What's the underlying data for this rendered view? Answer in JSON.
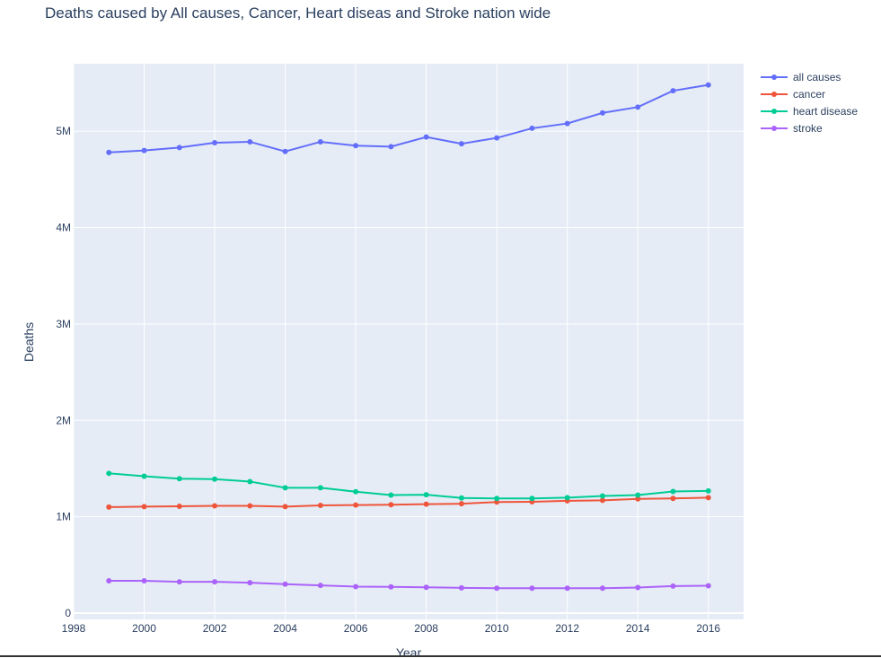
{
  "chart_data": {
    "type": "line",
    "title": "Deaths caused by All causes, Cancer, Heart diseas and Stroke nation wide",
    "xlabel": "Year",
    "ylabel": "Deaths",
    "xlim": [
      1998,
      2017
    ],
    "ylim": [
      0,
      5700000
    ],
    "x_ticks": [
      1998,
      2000,
      2002,
      2004,
      2006,
      2008,
      2010,
      2012,
      2014,
      2016
    ],
    "y_ticks": [
      0,
      1000000,
      2000000,
      3000000,
      4000000,
      5000000
    ],
    "y_tick_labels": [
      "0",
      "1M",
      "2M",
      "3M",
      "4M",
      "5M"
    ],
    "grid": true,
    "legend_position": "top-right",
    "plot_bgcolor": "#E5ECF6",
    "x": [
      1999,
      2000,
      2001,
      2002,
      2003,
      2004,
      2005,
      2006,
      2007,
      2008,
      2009,
      2010,
      2011,
      2012,
      2013,
      2014,
      2015,
      2016
    ],
    "series": [
      {
        "name": "all causes",
        "color": "#636EFA",
        "values": [
          4780000,
          4800000,
          4830000,
          4880000,
          4890000,
          4790000,
          4890000,
          4850000,
          4840000,
          4940000,
          4870000,
          4930000,
          5030000,
          5080000,
          5190000,
          5250000,
          5420000,
          5480000
        ]
      },
      {
        "name": "cancer",
        "color": "#EF553B",
        "values": [
          1100000,
          1105000,
          1108000,
          1113000,
          1113000,
          1105000,
          1118000,
          1121000,
          1125000,
          1130000,
          1135000,
          1152000,
          1155000,
          1165000,
          1170000,
          1185000,
          1190000,
          1198000
        ]
      },
      {
        "name": "heart disease",
        "color": "#00CC96",
        "values": [
          1450000,
          1420000,
          1395000,
          1390000,
          1365000,
          1300000,
          1300000,
          1260000,
          1225000,
          1228000,
          1195000,
          1190000,
          1190000,
          1198000,
          1215000,
          1225000,
          1262000,
          1268000
        ]
      },
      {
        "name": "stroke",
        "color": "#AB63FA",
        "values": [
          335000,
          335000,
          325000,
          325000,
          315000,
          300000,
          288000,
          275000,
          272000,
          268000,
          262000,
          258000,
          258000,
          258000,
          258000,
          265000,
          280000,
          284000
        ]
      }
    ]
  }
}
